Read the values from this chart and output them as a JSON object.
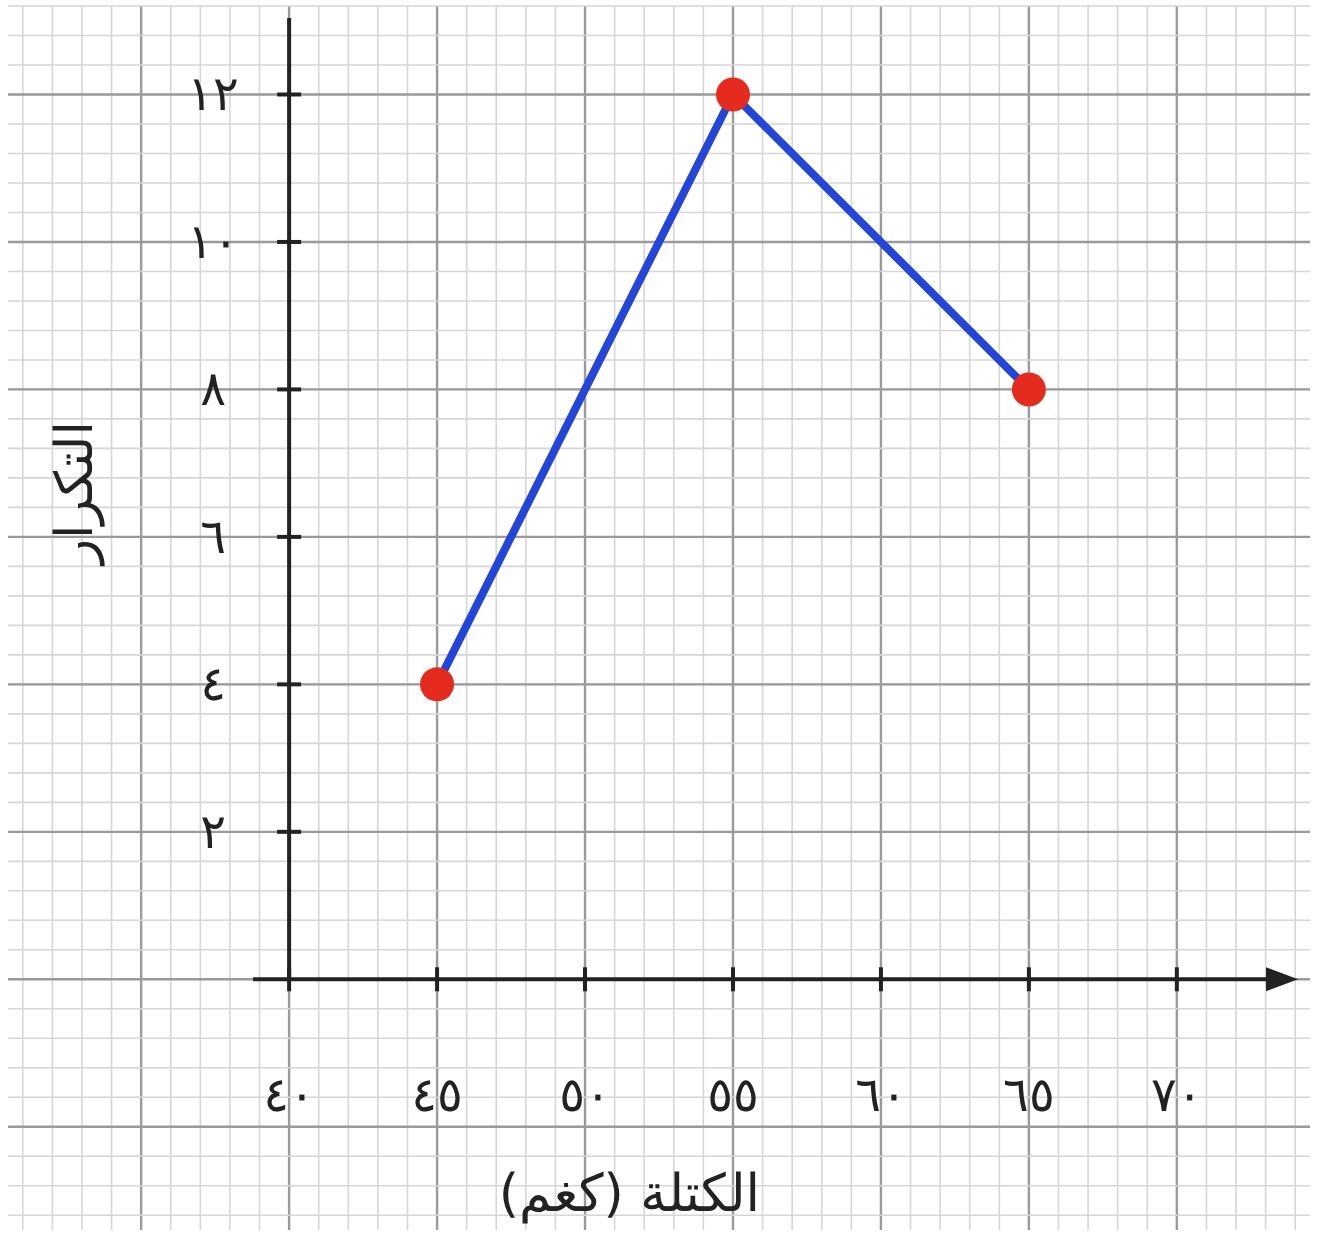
{
  "chart_data": {
    "type": "line",
    "xlabel": "الكتلة (كغم)",
    "ylabel": "التكرار",
    "x": [
      45,
      55,
      65
    ],
    "series": [
      {
        "color": "#2446d8",
        "colors": [
          "#e52b1e",
          "#e52b1e",
          "#e52b1e"
        ],
        "values": [
          4,
          12,
          8
        ]
      }
    ],
    "xlim": [
      30.5,
      74.5
    ],
    "ylim": [
      -3.4,
      13.2
    ],
    "xticks": [
      {
        "value": 40,
        "label": "٤٠"
      },
      {
        "value": 45,
        "label": "٤٥"
      },
      {
        "value": 50,
        "label": "٥٠"
      },
      {
        "value": 55,
        "label": "٥٥"
      },
      {
        "value": 60,
        "label": "٦٠"
      },
      {
        "value": 65,
        "label": "٦٥"
      },
      {
        "value": 70,
        "label": "٧٠"
      }
    ],
    "yticks": [
      {
        "value": 2,
        "label": "٢"
      },
      {
        "value": 4,
        "label": "٤"
      },
      {
        "value": 6,
        "label": "٦"
      },
      {
        "value": 8,
        "label": "٨"
      },
      {
        "value": 10,
        "label": "١٠"
      },
      {
        "value": 12,
        "label": "١٢"
      }
    ],
    "grid": true,
    "marker": "circle",
    "line_style": "solid"
  }
}
